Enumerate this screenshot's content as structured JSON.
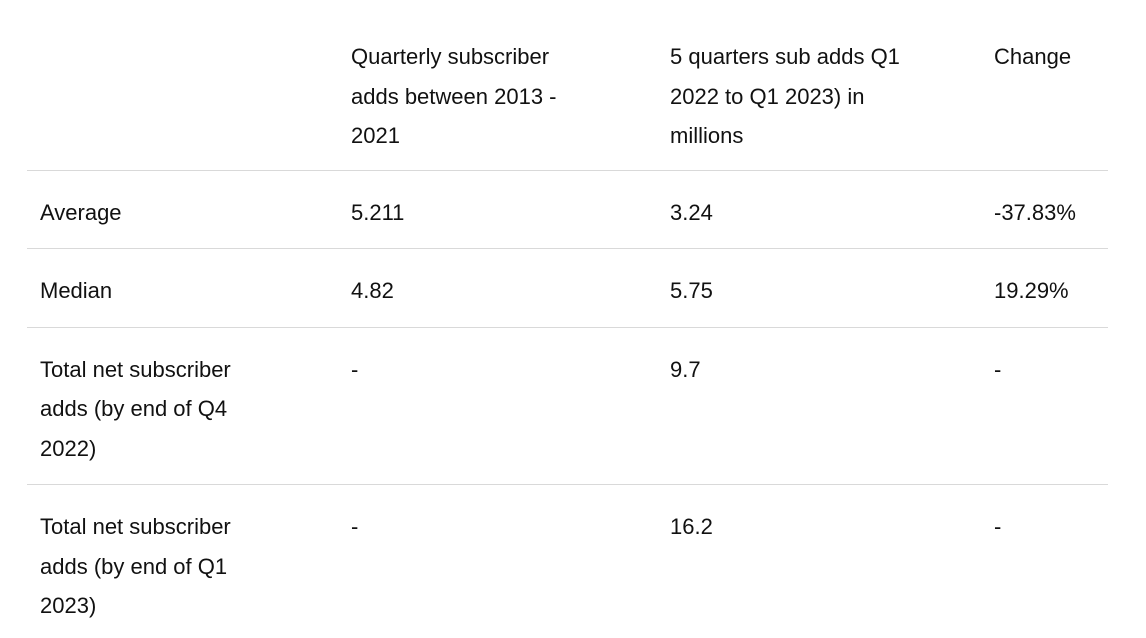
{
  "colors": {
    "background": "#ffffff",
    "text": "#111111",
    "row_border": "#d9d9d9"
  },
  "table": {
    "columns": [
      {
        "label": ""
      },
      {
        "label": "Quarterly subscriber\nadds between 2013 -\n2021"
      },
      {
        "label": "5 quarters sub adds Q1\n2022 to Q1 2023) in\nmillions"
      },
      {
        "label": "Change"
      }
    ],
    "rows": [
      {
        "label": "Average",
        "historical": "5.211",
        "recent": "3.24",
        "change": "-37.83%"
      },
      {
        "label": "Median",
        "historical": "4.82",
        "recent": "5.75",
        "change": "19.29%"
      },
      {
        "label": "Total net subscriber\nadds (by end of Q4\n2022)",
        "historical": "-",
        "recent": "9.7",
        "change": "-"
      },
      {
        "label": "Total net subscriber\nadds (by end of Q1\n2023)",
        "historical": "-",
        "recent": "16.2",
        "change": "-"
      }
    ]
  },
  "chart_data": {
    "type": "table",
    "title": "",
    "columns": [
      "",
      "Quarterly subscriber adds between 2013 - 2021",
      "5 quarters sub adds Q1 2022 to Q1 2023) in millions",
      "Change"
    ],
    "rows": [
      [
        "Average",
        "5.211",
        "3.24",
        "-37.83%"
      ],
      [
        "Median",
        "4.82",
        "5.75",
        "19.29%"
      ],
      [
        "Total net subscriber adds (by end of Q4 2022)",
        "-",
        "9.7",
        "-"
      ],
      [
        "Total net subscriber adds (by end of Q1 2023)",
        "-",
        "16.2",
        "-"
      ]
    ]
  }
}
